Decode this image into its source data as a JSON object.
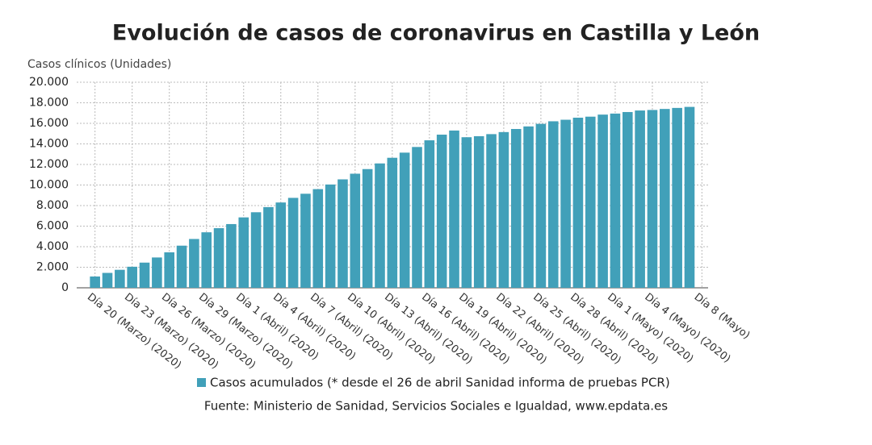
{
  "chart_data": {
    "type": "bar",
    "title": "Evolución de casos de coronavirus en Castilla y León",
    "y_label": "Casos clínicos (Unidades)",
    "categories": [
      "Día 20 (Marzo) (2020)",
      null,
      null,
      "Día 23 (Marzo) (2020)",
      null,
      null,
      "Día 26 (Marzo) (2020)",
      null,
      null,
      "Día 29 (Marzo) (2020)",
      null,
      null,
      "Día 1 (Abril) (2020)",
      null,
      null,
      "Día 4 (Abril) (2020)",
      null,
      null,
      "Día 7 (Abril) (2020)",
      null,
      null,
      "Día 10 (Abril) (2020)",
      null,
      null,
      "Día 13 (Abril) (2020)",
      null,
      null,
      "Día 16 (Abril) (2020)",
      null,
      null,
      "Día 19 (Abril) (2020)",
      null,
      null,
      "Día 22 (Abril) (2020)",
      null,
      null,
      "Día 25 (Abril) (2020)",
      null,
      null,
      "Día 28 (Abril) (2020)",
      null,
      null,
      "Día 1 (Mayo) (2020)",
      null,
      null,
      "Día 4 (Mayo) (2020)",
      null,
      null,
      null,
      "Día 8 (Mayo)"
    ],
    "series": [
      {
        "name": "Casos acumulados (* desde el 26 de abril Sanidad informa de pruebas PCR)",
        "color": "#41a0b9",
        "values": [
          1100,
          1450,
          1750,
          2050,
          2450,
          2950,
          3450,
          4100,
          4750,
          5400,
          5800,
          6200,
          6850,
          7350,
          7850,
          8300,
          8750,
          9150,
          9600,
          10050,
          10550,
          11100,
          11550,
          12100,
          12650,
          13150,
          13700,
          14350,
          14900,
          15300,
          14650,
          14750,
          14950,
          15150,
          15450,
          15700,
          15950,
          16200,
          16350,
          16550,
          16650,
          16850,
          16950,
          17100,
          17250,
          17300,
          17400,
          17500,
          17600,
          null
        ]
      }
    ],
    "ylim": [
      0,
      20000
    ],
    "yticks": [
      0,
      {
        "value": 2000,
        "label": "2.000"
      },
      {
        "value": 4000,
        "label": "4.000"
      },
      {
        "value": 6000,
        "label": "6.000"
      },
      {
        "value": 8000,
        "label": "8.000"
      },
      {
        "value": 10000,
        "label": "10.000"
      },
      {
        "value": 12000,
        "label": "12.000"
      },
      {
        "value": 14000,
        "label": "14.000"
      },
      {
        "value": 16000,
        "label": "16.000"
      },
      {
        "value": 18000,
        "label": "18.000"
      },
      {
        "value": 20000,
        "label": "20.000"
      }
    ],
    "grid": true,
    "source": "Fuente: Ministerio de Sanidad, Servicios Sociales e Igualdad, www.epdata.es"
  }
}
